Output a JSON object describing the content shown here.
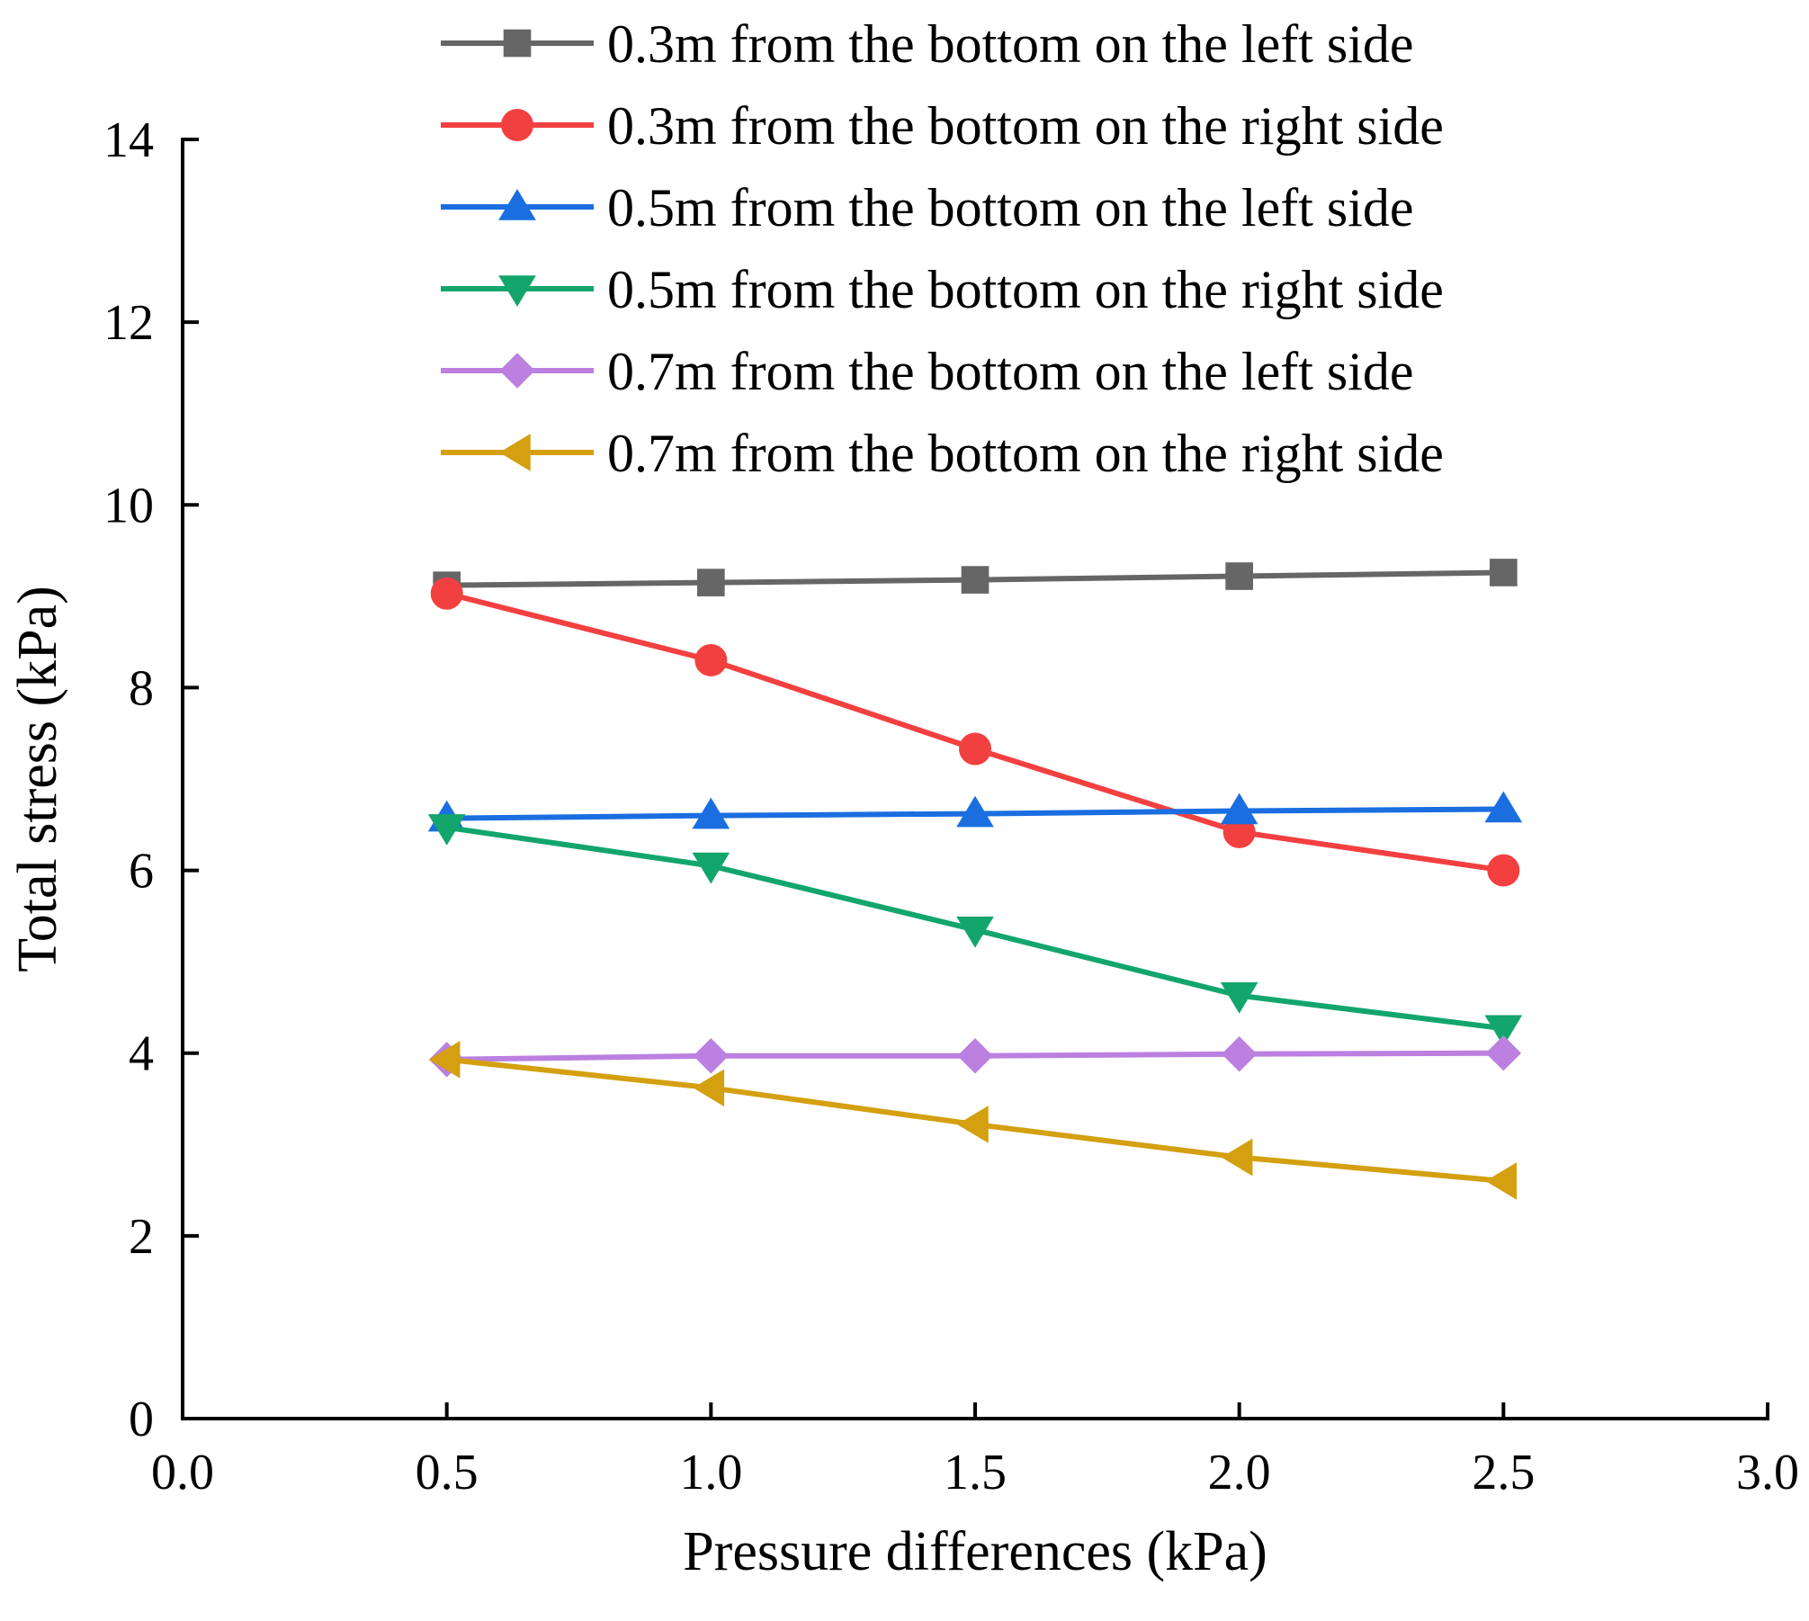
{
  "chart_data": {
    "type": "line",
    "title": "",
    "xlabel": "Pressure differences (kPa)",
    "ylabel": "Total stress (kPa)",
    "xlim": [
      0.0,
      3.0
    ],
    "ylim": [
      0,
      14
    ],
    "xticks": [
      "0.0",
      "0.5",
      "1.0",
      "1.5",
      "2.0",
      "2.5",
      "3.0"
    ],
    "yticks": [
      "0",
      "2",
      "4",
      "6",
      "8",
      "10",
      "12",
      "14"
    ],
    "legend_position": "top-right",
    "x": [
      0.5,
      1.0,
      1.5,
      2.0,
      2.5
    ],
    "series": [
      {
        "name": "0.3m from the bottom on the left side",
        "marker": "square",
        "color": "#666666",
        "values": [
          9.12,
          9.15,
          9.18,
          9.22,
          9.26
        ]
      },
      {
        "name": "0.3m from the bottom on the right side",
        "marker": "circle",
        "color": "#f24040",
        "values": [
          9.03,
          8.3,
          7.33,
          6.42,
          6.0
        ]
      },
      {
        "name": "0.5m from the bottom on the left side",
        "marker": "triangle-up",
        "color": "#1a6ee0",
        "values": [
          6.57,
          6.6,
          6.62,
          6.65,
          6.67
        ]
      },
      {
        "name": "0.5m from the bottom on the right side",
        "marker": "triangle-down",
        "color": "#12a66c",
        "values": [
          6.47,
          6.05,
          5.35,
          4.63,
          4.27
        ]
      },
      {
        "name": "0.7m from the bottom on the left side",
        "marker": "diamond",
        "color": "#bb80e0",
        "values": [
          3.93,
          3.97,
          3.97,
          3.99,
          4.0
        ]
      },
      {
        "name": "0.7m from the bottom on the right side",
        "marker": "triangle-left",
        "color": "#d4a010",
        "values": [
          3.93,
          3.62,
          3.22,
          2.86,
          2.6
        ]
      }
    ]
  }
}
